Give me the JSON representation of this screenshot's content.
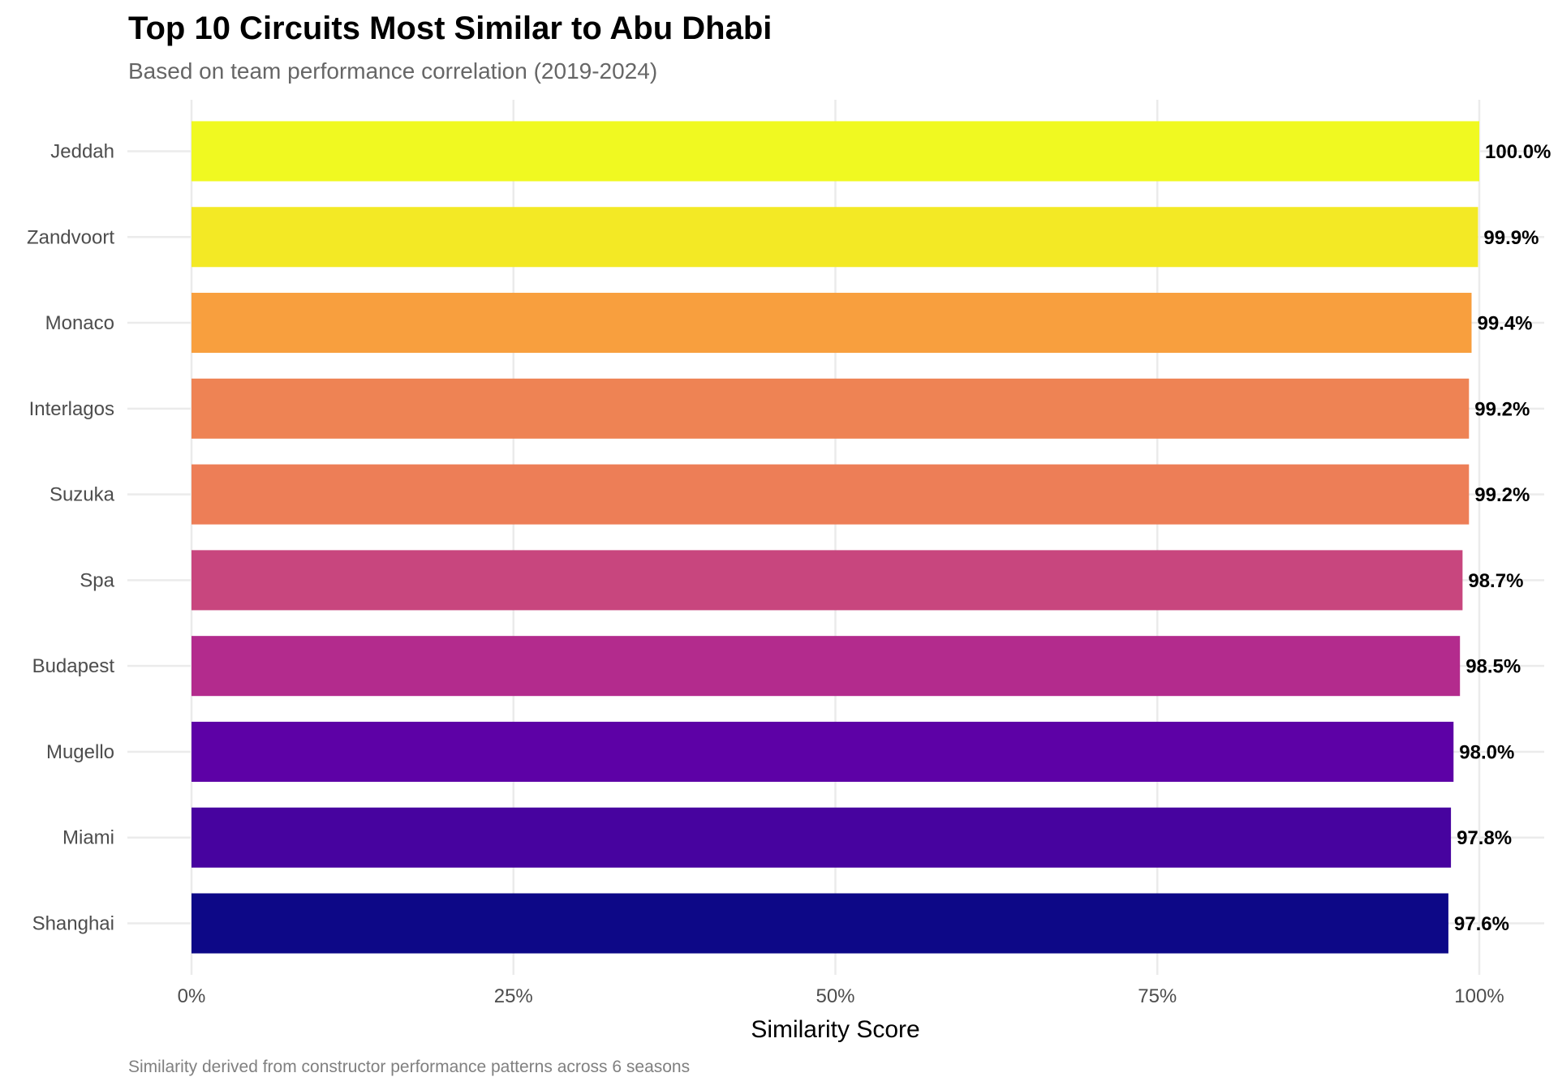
{
  "chart_data": {
    "type": "bar",
    "orientation": "horizontal",
    "title": "Top 10 Circuits Most Similar to Abu Dhabi",
    "subtitle": "Based on team performance correlation (2019-2024)",
    "caption": "Similarity derived from constructor performance patterns across 6 seasons",
    "xlabel": "Similarity Score",
    "ylabel": "",
    "xlim": [
      0,
      1
    ],
    "x_ticks": [
      0,
      0.25,
      0.5,
      0.75,
      1
    ],
    "x_tick_labels": [
      "0%",
      "25%",
      "50%",
      "75%",
      "100%"
    ],
    "grid": true,
    "legend": "none",
    "categories": [
      "Jeddah",
      "Zandvoort",
      "Monaco",
      "Interlagos",
      "Suzuka",
      "Spa",
      "Budapest",
      "Mugello",
      "Miami",
      "Shanghai"
    ],
    "values": [
      1.0,
      0.999,
      0.994,
      0.992,
      0.992,
      0.987,
      0.985,
      0.98,
      0.978,
      0.976
    ],
    "value_labels": [
      "100.0%",
      "99.9%",
      "99.4%",
      "99.2%",
      "99.2%",
      "98.7%",
      "98.5%",
      "98.0%",
      "97.8%",
      "97.6%"
    ],
    "colors": [
      "#F0F921",
      "#F3E925",
      "#F89F3E",
      "#EE8354",
      "#ED7E57",
      "#C8467E",
      "#B32B8D",
      "#5D01A6",
      "#47039F",
      "#0D0887"
    ]
  }
}
